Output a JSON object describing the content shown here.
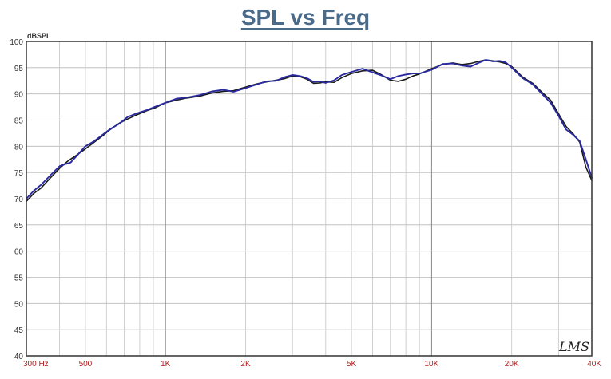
{
  "chart_data": {
    "type": "line",
    "title": "SPL vs Freq",
    "ylabel": "dBSPL",
    "xscale": "log",
    "xlim": [
      300,
      40000
    ],
    "ylim": [
      40,
      100
    ],
    "grid": true,
    "yticks": [
      40,
      45,
      50,
      55,
      60,
      65,
      70,
      75,
      80,
      85,
      90,
      95,
      100
    ],
    "xticks": [
      {
        "value": 300,
        "label": "300  Hz"
      },
      {
        "value": 500,
        "label": "500"
      },
      {
        "value": 1000,
        "label": "1K"
      },
      {
        "value": 2000,
        "label": "2K"
      },
      {
        "value": 5000,
        "label": "5K"
      },
      {
        "value": 10000,
        "label": "10K"
      },
      {
        "value": 20000,
        "label": "20K"
      },
      {
        "value": 40000,
        "label": "40K"
      }
    ],
    "series": [
      {
        "color": "#1a1a1a",
        "points": [
          [
            300,
            69.5
          ],
          [
            320,
            71
          ],
          [
            340,
            72
          ],
          [
            370,
            74
          ],
          [
            400,
            75.8
          ],
          [
            430,
            77.2
          ],
          [
            460,
            78.2
          ],
          [
            500,
            79.5
          ],
          [
            540,
            80.8
          ],
          [
            580,
            82
          ],
          [
            620,
            83.2
          ],
          [
            670,
            84.4
          ],
          [
            720,
            85.2
          ],
          [
            780,
            86
          ],
          [
            850,
            86.8
          ],
          [
            920,
            87.4
          ],
          [
            1000,
            88.3
          ],
          [
            1100,
            88.8
          ],
          [
            1200,
            89.2
          ],
          [
            1350,
            89.6
          ],
          [
            1500,
            90.2
          ],
          [
            1650,
            90.5
          ],
          [
            1800,
            90.6
          ],
          [
            2000,
            91.3
          ],
          [
            2200,
            91.9
          ],
          [
            2400,
            92.3
          ],
          [
            2600,
            92.6
          ],
          [
            2800,
            92.9
          ],
          [
            3000,
            93.4
          ],
          [
            3200,
            93.3
          ],
          [
            3400,
            92.8
          ],
          [
            3600,
            92
          ],
          [
            3800,
            92.1
          ],
          [
            4000,
            92.3
          ],
          [
            4300,
            92.2
          ],
          [
            4600,
            93.1
          ],
          [
            5000,
            93.9
          ],
          [
            5500,
            94.4
          ],
          [
            6000,
            94.5
          ],
          [
            6500,
            93.6
          ],
          [
            7000,
            92.6
          ],
          [
            7500,
            92.4
          ],
          [
            8000,
            92.8
          ],
          [
            8500,
            93.4
          ],
          [
            9000,
            93.8
          ],
          [
            10000,
            94.8
          ],
          [
            11000,
            95.6
          ],
          [
            12000,
            95.9
          ],
          [
            13000,
            95.6
          ],
          [
            14000,
            95.8
          ],
          [
            15000,
            96.2
          ],
          [
            16000,
            96.5
          ],
          [
            17000,
            96.3
          ],
          [
            18000,
            96.1
          ],
          [
            19000,
            95.8
          ],
          [
            20000,
            95.2
          ],
          [
            22000,
            93.2
          ],
          [
            24000,
            92
          ],
          [
            26000,
            90.3
          ],
          [
            28000,
            88.8
          ],
          [
            30000,
            86.2
          ],
          [
            32000,
            83.8
          ],
          [
            34000,
            82.4
          ],
          [
            36000,
            80.8
          ],
          [
            38000,
            76
          ],
          [
            40000,
            73.5
          ]
        ]
      },
      {
        "color": "#2a2aa0",
        "points": [
          [
            300,
            70
          ],
          [
            320,
            71.5
          ],
          [
            340,
            72.6
          ],
          [
            370,
            74.5
          ],
          [
            400,
            76.2
          ],
          [
            420,
            76.6
          ],
          [
            440,
            76.9
          ],
          [
            470,
            78.5
          ],
          [
            500,
            80
          ],
          [
            540,
            81
          ],
          [
            580,
            82.2
          ],
          [
            620,
            83.3
          ],
          [
            670,
            84.3
          ],
          [
            720,
            85.6
          ],
          [
            780,
            86.3
          ],
          [
            850,
            86.9
          ],
          [
            920,
            87.6
          ],
          [
            1000,
            88.3
          ],
          [
            1100,
            89.1
          ],
          [
            1200,
            89.3
          ],
          [
            1350,
            89.8
          ],
          [
            1500,
            90.5
          ],
          [
            1650,
            90.8
          ],
          [
            1800,
            90.4
          ],
          [
            2000,
            91.1
          ],
          [
            2200,
            91.8
          ],
          [
            2400,
            92.4
          ],
          [
            2600,
            92.5
          ],
          [
            2800,
            93.2
          ],
          [
            3000,
            93.6
          ],
          [
            3200,
            93.4
          ],
          [
            3400,
            93
          ],
          [
            3600,
            92.3
          ],
          [
            3800,
            92.4
          ],
          [
            4000,
            92.1
          ],
          [
            4300,
            92.6
          ],
          [
            4600,
            93.6
          ],
          [
            5000,
            94.2
          ],
          [
            5500,
            94.8
          ],
          [
            6000,
            94.1
          ],
          [
            6500,
            93.5
          ],
          [
            7000,
            92.8
          ],
          [
            7500,
            93.4
          ],
          [
            8000,
            93.7
          ],
          [
            8500,
            93.9
          ],
          [
            9000,
            93.9
          ],
          [
            10000,
            94.6
          ],
          [
            11000,
            95.7
          ],
          [
            12000,
            95.8
          ],
          [
            13000,
            95.4
          ],
          [
            14000,
            95.2
          ],
          [
            15000,
            95.9
          ],
          [
            16000,
            96.5
          ],
          [
            17000,
            96.2
          ],
          [
            18000,
            96.3
          ],
          [
            19000,
            96
          ],
          [
            20000,
            95
          ],
          [
            22000,
            93
          ],
          [
            24000,
            91.8
          ],
          [
            26000,
            90
          ],
          [
            28000,
            88.3
          ],
          [
            30000,
            85.8
          ],
          [
            32000,
            83.2
          ],
          [
            34000,
            82.2
          ],
          [
            36000,
            81
          ],
          [
            38000,
            77.5
          ],
          [
            40000,
            74
          ]
        ]
      }
    ],
    "watermark": "LMS"
  }
}
